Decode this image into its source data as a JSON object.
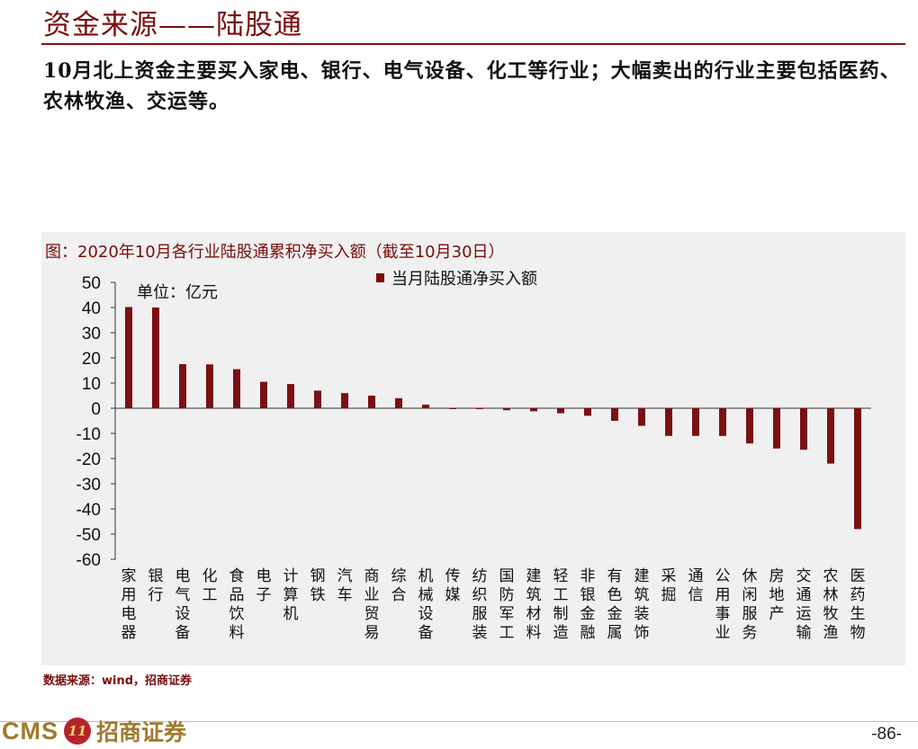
{
  "page": {
    "title": "资金来源——陆股通",
    "summary": "10月北上资金主要买入家电、银行、电气设备、化工等行业；大幅卖出的行业主要包括医药、农林牧渔、交运等。",
    "source": "数据来源：wind，招商证券",
    "brand_cms": "CMS",
    "brand_logo": "11",
    "brand_name": "招商证券",
    "page_number": "-86-"
  },
  "chart_data": {
    "type": "bar",
    "title": "图：2020年10月各行业陆股通累积净买入额（截至10月30日）",
    "unit": "单位：亿元",
    "ylim": [
      -60,
      50
    ],
    "yticks": [
      50,
      40,
      30,
      20,
      10,
      0,
      -10,
      -20,
      -30,
      -40,
      -50,
      -60
    ],
    "legend_position": "top",
    "grid": false,
    "categories": [
      "家用电器",
      "银行",
      "电气设备",
      "化工",
      "食品饮料",
      "电子",
      "计算机",
      "钢铁",
      "汽车",
      "商业贸易",
      "综合",
      "机械设备",
      "传媒",
      "纺织服装",
      "国防军工",
      "建筑材料",
      "轻工制造",
      "非银金融",
      "有色金属",
      "建筑装饰",
      "采掘",
      "通信",
      "公用事业",
      "休闲服务",
      "房地产",
      "交通运输",
      "农林牧渔",
      "医药生物"
    ],
    "series": [
      {
        "name": "当月陆股通净买入额",
        "color": "#7b0f12",
        "values": [
          40.2,
          40.0,
          17.5,
          17.4,
          15.5,
          10.5,
          9.6,
          7.0,
          6.0,
          5.0,
          4.0,
          1.4,
          -0.2,
          -0.3,
          -0.8,
          -1.2,
          -2.0,
          -3.0,
          -5.0,
          -7.0,
          -11.0,
          -11.0,
          -11.0,
          -14.0,
          -16.0,
          -16.5,
          -22.0,
          -48.0
        ]
      }
    ]
  }
}
